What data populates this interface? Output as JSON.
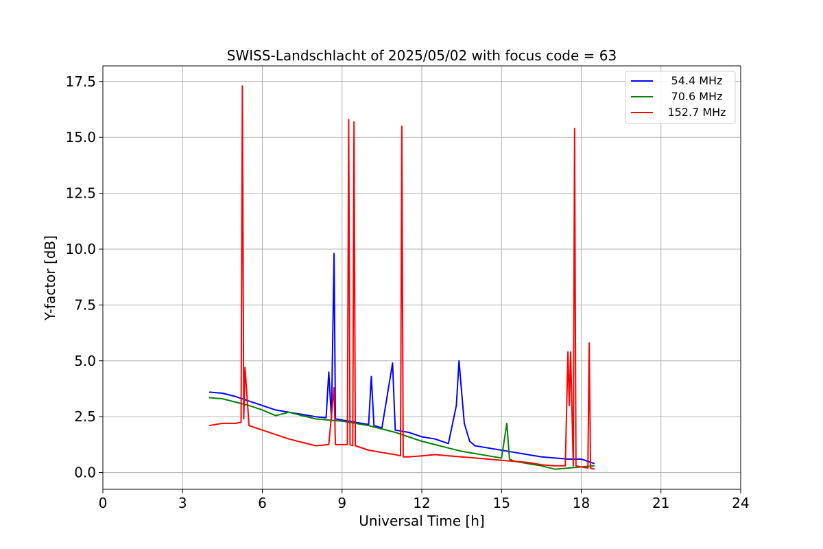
{
  "chart_data": {
    "type": "line",
    "title": "SWISS-Landschlacht of 2025/05/02 with focus code = 63",
    "xlabel": "Universal Time [h]",
    "ylabel": "Y-factor [dB]",
    "xlim": [
      0,
      24
    ],
    "ylim": [
      -0.75,
      18.2
    ],
    "xticks": [
      0,
      3,
      6,
      9,
      12,
      15,
      18,
      21,
      24
    ],
    "xtick_labels": [
      "0",
      "3",
      "6",
      "9",
      "12",
      "15",
      "18",
      "21",
      "24"
    ],
    "yticks": [
      0.0,
      2.5,
      5.0,
      7.5,
      10.0,
      12.5,
      15.0,
      17.5
    ],
    "ytick_labels": [
      "0.0",
      "2.5",
      "5.0",
      "7.5",
      "10.0",
      "12.5",
      "15.0",
      "17.5"
    ],
    "grid": true,
    "legend_position": "top-right",
    "series": [
      {
        "name": "54.4 MHz",
        "color": "#0000ff",
        "x": [
          4.0,
          4.5,
          5.0,
          5.5,
          6.0,
          6.5,
          7.0,
          7.5,
          8.0,
          8.4,
          8.5,
          8.6,
          8.7,
          8.75,
          9.0,
          9.5,
          10.0,
          10.1,
          10.2,
          10.5,
          10.9,
          11.0,
          11.5,
          12.0,
          12.5,
          13.0,
          13.3,
          13.4,
          13.5,
          13.6,
          13.8,
          14.0,
          14.5,
          15.0,
          15.5,
          16.0,
          16.5,
          17.0,
          17.5,
          18.0,
          18.5
        ],
        "y": [
          3.6,
          3.55,
          3.4,
          3.2,
          3.0,
          2.8,
          2.7,
          2.6,
          2.5,
          2.45,
          4.5,
          2.4,
          9.8,
          2.4,
          2.35,
          2.25,
          2.15,
          4.3,
          2.1,
          2.0,
          4.9,
          1.9,
          1.8,
          1.6,
          1.5,
          1.3,
          3.0,
          5.0,
          3.6,
          2.2,
          1.4,
          1.2,
          1.1,
          1.0,
          0.9,
          0.8,
          0.7,
          0.65,
          0.6,
          0.6,
          0.4
        ]
      },
      {
        "name": "70.6 MHz",
        "color": "#008000",
        "x": [
          4.0,
          4.5,
          5.0,
          5.5,
          6.0,
          6.5,
          7.0,
          7.5,
          8.0,
          8.5,
          9.0,
          9.5,
          10.0,
          10.5,
          11.0,
          11.5,
          12.0,
          12.5,
          13.0,
          13.5,
          14.0,
          14.5,
          15.0,
          15.2,
          15.3,
          15.5,
          16.0,
          16.5,
          17.0,
          17.5,
          18.0,
          18.5
        ],
        "y": [
          3.35,
          3.3,
          3.15,
          3.0,
          2.8,
          2.55,
          2.7,
          2.55,
          2.4,
          2.35,
          2.3,
          2.2,
          2.1,
          1.95,
          1.8,
          1.6,
          1.4,
          1.25,
          1.1,
          0.95,
          0.85,
          0.75,
          0.65,
          2.2,
          0.6,
          0.5,
          0.4,
          0.3,
          0.15,
          0.2,
          0.25,
          0.3
        ]
      },
      {
        "name": "152.7 MHz",
        "color": "#ff0000",
        "x": [
          4.0,
          4.5,
          5.0,
          5.2,
          5.25,
          5.3,
          5.35,
          5.5,
          6.0,
          6.5,
          7.0,
          7.5,
          8.0,
          8.5,
          8.7,
          8.75,
          9.0,
          9.2,
          9.25,
          9.3,
          9.4,
          9.45,
          9.5,
          10.0,
          10.5,
          11.0,
          11.2,
          11.25,
          11.3,
          11.5,
          12.0,
          12.5,
          13.0,
          13.5,
          14.0,
          14.5,
          15.0,
          15.5,
          16.0,
          16.5,
          17.0,
          17.4,
          17.5,
          17.55,
          17.6,
          17.7,
          17.75,
          17.8,
          18.0,
          18.25,
          18.3,
          18.35,
          18.5
        ],
        "y": [
          2.1,
          2.2,
          2.2,
          2.25,
          17.3,
          2.4,
          4.7,
          2.1,
          1.9,
          1.7,
          1.5,
          1.35,
          1.2,
          1.25,
          3.8,
          1.25,
          1.25,
          1.25,
          15.8,
          1.25,
          1.2,
          15.7,
          1.2,
          1.0,
          0.9,
          0.8,
          0.75,
          15.5,
          0.7,
          0.7,
          0.75,
          0.8,
          0.75,
          0.7,
          0.65,
          0.6,
          0.55,
          0.5,
          0.45,
          0.35,
          0.3,
          0.3,
          5.4,
          3.0,
          5.4,
          0.3,
          15.4,
          0.3,
          0.25,
          0.2,
          5.8,
          0.2,
          0.15
        ]
      }
    ]
  }
}
